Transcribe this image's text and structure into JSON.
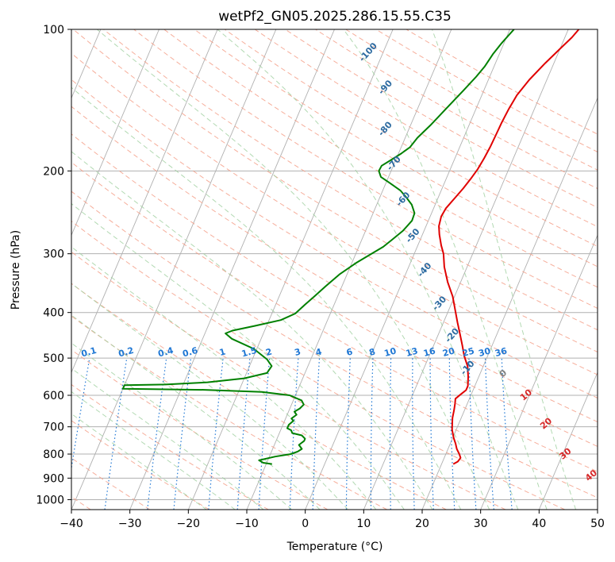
{
  "chart_data": {
    "type": "line",
    "title": "wetPf2_GN05.2025.286.15.55.C35",
    "xlabel": "Temperature (°C)",
    "ylabel": "Pressure (hPa)",
    "xlim": [
      -40,
      50
    ],
    "ylim": [
      1050,
      100
    ],
    "y_scale": "log",
    "x_ticks": [
      -40,
      -30,
      -20,
      -10,
      0,
      10,
      20,
      30,
      40,
      50
    ],
    "x_tick_labels": [
      "−40",
      "−30",
      "−20",
      "−10",
      "0",
      "10",
      "20",
      "30",
      "40",
      "50"
    ],
    "y_ticks": [
      1000,
      900,
      800,
      700,
      600,
      500,
      400,
      300,
      200,
      100
    ],
    "y_tick_labels": [
      "1000",
      "900",
      "800",
      "700",
      "600",
      "500",
      "400",
      "300",
      "200",
      "100"
    ],
    "grid": true,
    "series": [
      {
        "color": "#e00000",
        "points": [
          [
            22.0,
            840
          ],
          [
            22.6,
            830
          ],
          [
            22.8,
            815
          ],
          [
            22.3,
            800
          ],
          [
            21.5,
            780
          ],
          [
            20.9,
            760
          ],
          [
            20.2,
            740
          ],
          [
            19.3,
            710
          ],
          [
            18.9,
            690
          ],
          [
            18.5,
            670
          ],
          [
            18.2,
            645
          ],
          [
            17.9,
            625
          ],
          [
            17.6,
            610
          ],
          [
            18.2,
            597
          ],
          [
            18.8,
            585
          ],
          [
            18.8,
            573
          ],
          [
            18.2,
            548
          ],
          [
            17.3,
            520
          ],
          [
            16.0,
            495
          ],
          [
            14.9,
            470
          ],
          [
            13.7,
            445
          ],
          [
            12.4,
            420
          ],
          [
            11.1,
            395
          ],
          [
            9.7,
            370
          ],
          [
            7.8,
            345
          ],
          [
            6.1,
            320
          ],
          [
            5.0,
            300
          ],
          [
            4.0,
            288
          ],
          [
            2.9,
            273
          ],
          [
            2.2,
            262
          ],
          [
            1.9,
            250
          ],
          [
            2.1,
            240
          ],
          [
            2.9,
            228
          ],
          [
            3.6,
            218
          ],
          [
            4.2,
            208
          ],
          [
            4.7,
            198
          ],
          [
            5.0,
            188
          ],
          [
            5.2,
            178
          ],
          [
            5.3,
            168
          ],
          [
            5.4,
            158
          ],
          [
            5.6,
            148
          ],
          [
            6.0,
            138
          ],
          [
            7.0,
            128
          ],
          [
            8.5,
            118
          ],
          [
            10.0,
            110
          ],
          [
            11.2,
            104
          ],
          [
            11.8,
            100
          ]
        ]
      },
      {
        "color": "#008000",
        "points": [
          [
            -9.0,
            840
          ],
          [
            -10.6,
            835
          ],
          [
            -11.5,
            825
          ],
          [
            -9.0,
            810
          ],
          [
            -6.5,
            800
          ],
          [
            -5.5,
            790
          ],
          [
            -5.0,
            780
          ],
          [
            -5.8,
            765
          ],
          [
            -5.2,
            750
          ],
          [
            -5.2,
            742
          ],
          [
            -6.0,
            730
          ],
          [
            -7.8,
            722
          ],
          [
            -8.2,
            712
          ],
          [
            -9.0,
            705
          ],
          [
            -9.0,
            693
          ],
          [
            -8.5,
            680
          ],
          [
            -9.0,
            672
          ],
          [
            -8.4,
            660
          ],
          [
            -9.0,
            650
          ],
          [
            -8.3,
            640
          ],
          [
            -7.9,
            628
          ],
          [
            -8.6,
            615
          ],
          [
            -11.0,
            600
          ],
          [
            -16.0,
            590
          ],
          [
            -26.0,
            584
          ],
          [
            -40.0,
            581
          ],
          [
            -40.0,
            571
          ],
          [
            -33.0,
            569
          ],
          [
            -26.0,
            563
          ],
          [
            -20.0,
            552
          ],
          [
            -16.5,
            538
          ],
          [
            -16.2,
            520
          ],
          [
            -17.5,
            503
          ],
          [
            -20.5,
            478
          ],
          [
            -25.0,
            455
          ],
          [
            -26.5,
            443
          ],
          [
            -25.5,
            437
          ],
          [
            -22.0,
            427
          ],
          [
            -18.0,
            415
          ],
          [
            -16.0,
            402
          ],
          [
            -15.0,
            385
          ],
          [
            -14.0,
            370
          ],
          [
            -12.8,
            352
          ],
          [
            -11.3,
            332
          ],
          [
            -9.3,
            314
          ],
          [
            -7.6,
            302
          ],
          [
            -5.8,
            290
          ],
          [
            -4.8,
            280
          ],
          [
            -3.6,
            268
          ],
          [
            -2.8,
            255
          ],
          [
            -2.9,
            246
          ],
          [
            -4.0,
            236
          ],
          [
            -5.6,
            227
          ],
          [
            -7.0,
            220
          ],
          [
            -9.4,
            212
          ],
          [
            -11.3,
            206
          ],
          [
            -12.1,
            200
          ],
          [
            -12.0,
            195
          ],
          [
            -10.9,
            190
          ],
          [
            -9.6,
            184
          ],
          [
            -8.5,
            178
          ],
          [
            -7.9,
            170
          ],
          [
            -6.6,
            160
          ],
          [
            -5.2,
            148
          ],
          [
            -3.5,
            135
          ],
          [
            -2.3,
            126
          ],
          [
            -1.6,
            120
          ],
          [
            -1.1,
            113
          ],
          [
            -0.4,
            107
          ],
          [
            0.7,
            100
          ]
        ]
      }
    ],
    "reference_lines": {
      "isotherms_skew": {
        "style": "solid",
        "color": "#b0b0b0"
      },
      "dry_adiabats": {
        "style": "dashed",
        "color": "#f5a08a"
      },
      "moist_adiabats": {
        "style": "dashed",
        "color": "#9fcf9f"
      },
      "mixing_ratio": {
        "style": "dotted",
        "color": "#1f77d4"
      },
      "dry_adiabat_labels": [
        {
          "text": "-100",
          "x": -22.5,
          "p": 112
        },
        {
          "text": "-90",
          "x": -17.0,
          "p": 133
        },
        {
          "text": "-80",
          "x": -14.0,
          "p": 163
        },
        {
          "text": "-70",
          "x": -10.0,
          "p": 193
        },
        {
          "text": "-60",
          "x": -5.8,
          "p": 230
        },
        {
          "text": "-50",
          "x": -1.5,
          "p": 275
        },
        {
          "text": "-40",
          "x": 3.0,
          "p": 325
        },
        {
          "text": "-30",
          "x": 8.0,
          "p": 383
        },
        {
          "text": "-20",
          "x": 12.5,
          "p": 448
        },
        {
          "text": "-10",
          "x": 17.5,
          "p": 525
        }
      ],
      "moist_adiabat_labels": [
        {
          "text": "0",
          "x": 24.0,
          "p": 540,
          "color": "#808080"
        },
        {
          "text": "10",
          "x": 29.5,
          "p": 600,
          "color": "#d62728"
        },
        {
          "text": "20",
          "x": 35.0,
          "p": 690,
          "color": "#d62728"
        },
        {
          "text": "30",
          "x": 40.5,
          "p": 800,
          "color": "#d62728"
        },
        {
          "text": "40",
          "x": 46.5,
          "p": 890,
          "color": "#d62728"
        }
      ],
      "mixing_ratio_labels": [
        "0.1",
        "0.2",
        "0.4",
        "0.6",
        "1",
        "1.5",
        "2",
        "3",
        "4",
        "6",
        "8",
        "10",
        "13",
        "16",
        "20",
        "25",
        "30",
        "36"
      ]
    }
  }
}
